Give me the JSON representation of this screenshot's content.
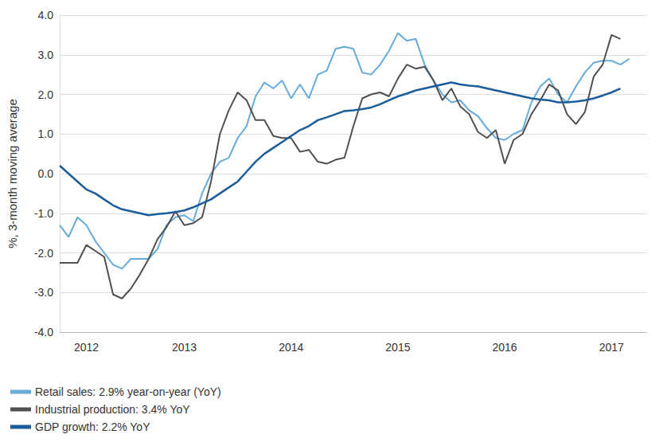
{
  "chart_data": {
    "type": "line",
    "y_label": "%, 3-month moving average",
    "categories": [
      null,
      null,
      null,
      "2012",
      null,
      null,
      null,
      null,
      null,
      null,
      null,
      null,
      null,
      null,
      "2013",
      null,
      null,
      null,
      null,
      null,
      null,
      null,
      null,
      null,
      null,
      null,
      "2014",
      null,
      null,
      null,
      null,
      null,
      null,
      null,
      null,
      null,
      null,
      null,
      "2015",
      null,
      null,
      null,
      null,
      null,
      null,
      null,
      null,
      null,
      null,
      null,
      "2016",
      null,
      null,
      null,
      null,
      null,
      null,
      null,
      null,
      null,
      null,
      null,
      "2017",
      null,
      null,
      null,
      null
    ],
    "ylim": [
      -4,
      4
    ],
    "yticks": [
      {
        "value": -4,
        "label": "-4.0"
      },
      {
        "value": -3,
        "label": "-3.0"
      },
      {
        "value": -2,
        "label": "-2.0"
      },
      {
        "value": -1,
        "label": "-1.0"
      },
      {
        "value": 0,
        "label": "0.0"
      },
      {
        "value": 1,
        "label": "1.0"
      },
      {
        "value": 2,
        "label": "2.0"
      },
      {
        "value": 3,
        "label": "3.0"
      },
      {
        "value": 4,
        "label": "4.0"
      }
    ],
    "grid": true,
    "legend": "bottom",
    "series": [
      {
        "name": "Retail sales: 2.9% year-on-year (YoY)",
        "color": "#67abd9",
        "values": [
          -1.3,
          -1.6,
          -1.1,
          -1.3,
          -1.7,
          -2.0,
          -2.3,
          -2.4,
          -2.15,
          -2.15,
          -2.15,
          -1.9,
          -1.3,
          -1.1,
          -1.05,
          -1.2,
          -0.5,
          0.0,
          0.3,
          0.4,
          0.9,
          1.2,
          1.95,
          2.3,
          2.15,
          2.35,
          1.9,
          2.25,
          1.9,
          2.5,
          2.6,
          3.15,
          3.2,
          3.15,
          2.55,
          2.5,
          2.75,
          3.1,
          3.55,
          3.35,
          3.4,
          2.75,
          2.35,
          2.0,
          1.8,
          1.85,
          1.6,
          1.45,
          1.15,
          0.9,
          0.85,
          1.0,
          1.1,
          1.8,
          2.2,
          2.4,
          2.0,
          1.8,
          2.2,
          2.55,
          2.8,
          2.85,
          2.85,
          2.75,
          2.9,
          null,
          null
        ]
      },
      {
        "name": "Industrial production: 3.4% YoY",
        "color": "#505050",
        "values": [
          -2.25,
          -2.25,
          -2.25,
          -1.8,
          -1.95,
          -2.1,
          -3.05,
          -3.15,
          -2.9,
          -2.55,
          -2.15,
          -1.65,
          -1.35,
          -0.95,
          -1.3,
          -1.25,
          -1.1,
          -0.2,
          1.0,
          1.6,
          2.05,
          1.85,
          1.35,
          1.35,
          0.95,
          0.9,
          0.9,
          0.55,
          0.6,
          0.3,
          0.25,
          0.35,
          0.4,
          1.2,
          1.9,
          2.0,
          2.05,
          1.95,
          2.4,
          2.75,
          2.65,
          2.7,
          2.35,
          1.85,
          2.15,
          1.7,
          1.5,
          1.05,
          0.9,
          1.1,
          0.25,
          0.85,
          1.0,
          1.5,
          1.85,
          2.25,
          2.1,
          1.5,
          1.25,
          1.55,
          2.45,
          2.75,
          3.5,
          3.4,
          null,
          null,
          null
        ]
      },
      {
        "name": "GDP growth: 2.2% YoY",
        "color": "#1b5c9b",
        "values": [
          0.2,
          0.0,
          -0.2,
          -0.4,
          -0.5,
          -0.65,
          -0.8,
          -0.9,
          -0.95,
          -1.0,
          -1.05,
          -1.02,
          -1.0,
          -0.97,
          -0.93,
          -0.85,
          -0.75,
          -0.65,
          -0.5,
          -0.35,
          -0.2,
          0.05,
          0.3,
          0.5,
          0.65,
          0.8,
          0.95,
          1.1,
          1.2,
          1.35,
          1.42,
          1.5,
          1.58,
          1.6,
          1.63,
          1.67,
          1.75,
          1.85,
          1.95,
          2.02,
          2.1,
          2.15,
          2.2,
          2.25,
          2.3,
          2.25,
          2.22,
          2.2,
          2.15,
          2.1,
          2.05,
          2.0,
          1.95,
          1.9,
          1.87,
          1.85,
          1.8,
          1.8,
          1.82,
          1.85,
          1.9,
          1.97,
          2.05,
          2.15,
          null,
          null,
          null
        ]
      }
    ]
  }
}
